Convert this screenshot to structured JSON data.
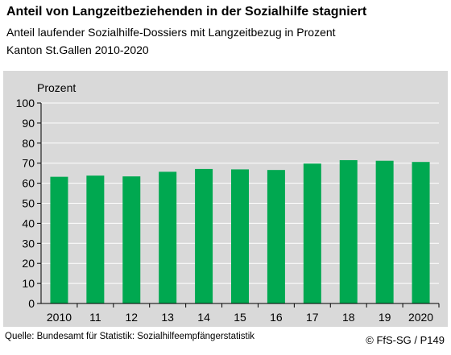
{
  "header": {
    "title": "Anteil von Langzeitbeziehenden in der Sozialhilfe stagniert",
    "subtitle1": "Anteil laufender Sozialhilfe-Dossiers mit Langzeitbezug in Prozent",
    "subtitle2": "Kanton St.Gallen 2010-2020"
  },
  "footer": {
    "source": "Quelle: Bundesamt für Statistik: Sozialhilfeempfängerstatistik",
    "copyright": "© FfS-SG / P149"
  },
  "chart_data": {
    "type": "bar",
    "categories": [
      "2010",
      "11",
      "12",
      "13",
      "14",
      "15",
      "16",
      "17",
      "18",
      "19",
      "2020"
    ],
    "values": [
      63.2,
      63.8,
      63.4,
      65.7,
      67.1,
      66.9,
      66.6,
      69.8,
      71.5,
      71.2,
      70.6
    ],
    "ylabel": "Prozent",
    "ylim": [
      0,
      100
    ],
    "yticks": [
      0,
      10,
      20,
      30,
      40,
      50,
      60,
      70,
      80,
      90,
      100
    ],
    "grid": true,
    "bar_color": "#00a850",
    "background_color": "#d9d9d9"
  }
}
